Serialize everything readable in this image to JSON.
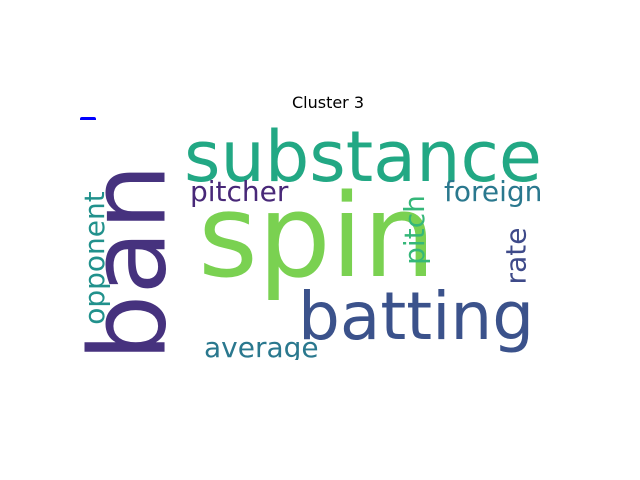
{
  "chart_data": {
    "type": "wordcloud",
    "title": "Cluster 3",
    "words": [
      {
        "text": "spin",
        "color": "#7ad151"
      },
      {
        "text": "ban",
        "color": "#46327e"
      },
      {
        "text": "substance",
        "color": "#22a884"
      },
      {
        "text": "batting",
        "color": "#3b528b"
      },
      {
        "text": "pitcher",
        "color": "#482878"
      },
      {
        "text": "foreign",
        "color": "#2a788e"
      },
      {
        "text": "pitch",
        "color": "#35b779"
      },
      {
        "text": "opponent",
        "color": "#21918c"
      },
      {
        "text": "rate",
        "color": "#3e4a89"
      },
      {
        "text": "average",
        "color": "#2a788e"
      }
    ]
  }
}
